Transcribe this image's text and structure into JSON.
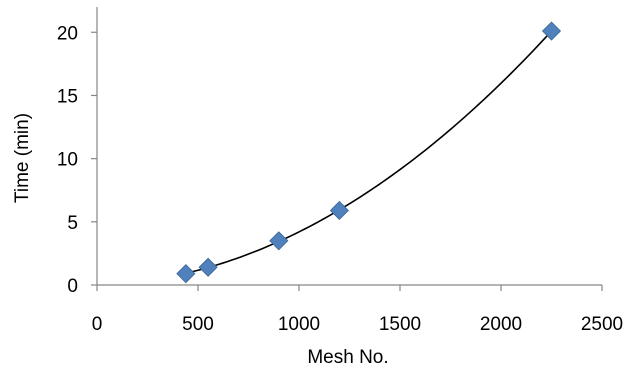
{
  "chart_data": {
    "type": "scatter",
    "title": "",
    "xlabel": "Mesh No.",
    "ylabel": "Time (min)",
    "xlim": [
      0,
      2500
    ],
    "ylim": [
      0,
      22
    ],
    "x_ticks": [
      0,
      500,
      1000,
      1500,
      2000,
      2500
    ],
    "y_ticks": [
      0,
      5,
      10,
      15,
      20
    ],
    "x_tick_labels": [
      "0",
      "500",
      "1000",
      "1500",
      "2000",
      "2500"
    ],
    "y_tick_labels": [
      "0",
      "5",
      "10",
      "15",
      "20"
    ],
    "grid": false,
    "legend": "none",
    "series": [
      {
        "marker": "diamond",
        "color": "#4F81BD",
        "points": [
          {
            "x": 440,
            "y": 0.9
          },
          {
            "x": 550,
            "y": 1.4
          },
          {
            "x": 900,
            "y": 3.5
          },
          {
            "x": 1200,
            "y": 5.9
          },
          {
            "x": 2250,
            "y": 20.1
          }
        ]
      }
    ],
    "trendline": {
      "type": "polynomial",
      "order": 2,
      "color": "#000000",
      "x_range": [
        440,
        2250
      ]
    }
  }
}
